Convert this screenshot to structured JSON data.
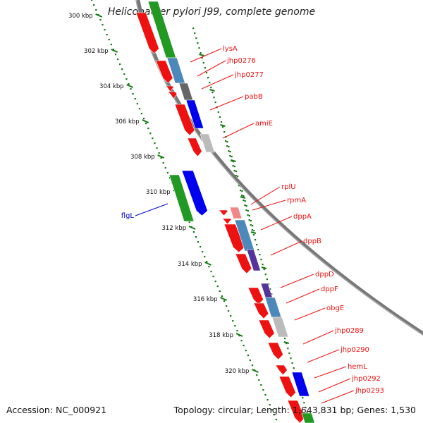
{
  "title": "Helicobacter pylori J99, complete genome",
  "footer": {
    "accession": "Accession: NC_000921",
    "topology": "Topology: circular; Length: 1,643,831 bp; Genes: 1,530"
  },
  "colors": {
    "gene_red": "#ee1111",
    "gene_green": "#229922",
    "gene_blue": "#0000ee",
    "steelblue": "#4d88bb",
    "darkgray": "#666666",
    "lightgray": "#bbbbbb",
    "purple": "#553399",
    "pink": "#ee8888",
    "tick": "#117711",
    "label_red": "#ee1111",
    "label_blue": "#0000cc"
  },
  "scale": {
    "unit": "kbp",
    "ticks": [
      "300 kbp",
      "302 kbp",
      "304 kbp",
      "306 kbp",
      "308 kbp",
      "310 kbp",
      "312 kbp",
      "314 kbp",
      "316 kbp",
      "318 kbp",
      "320 kbp"
    ]
  },
  "gene_labels": [
    {
      "name": "lysA",
      "strand": "minus"
    },
    {
      "name": "jhp0276",
      "strand": "minus"
    },
    {
      "name": "jhp0277",
      "strand": "minus"
    },
    {
      "name": "pabB",
      "strand": "minus"
    },
    {
      "name": "amiE",
      "strand": "minus"
    },
    {
      "name": "rplU",
      "strand": "minus"
    },
    {
      "name": "rpmA",
      "strand": "minus"
    },
    {
      "name": "dppA",
      "strand": "minus"
    },
    {
      "name": "dppB",
      "strand": "minus"
    },
    {
      "name": "dppD",
      "strand": "minus"
    },
    {
      "name": "dppF",
      "strand": "minus"
    },
    {
      "name": "obgE",
      "strand": "minus"
    },
    {
      "name": "jhp0289",
      "strand": "minus"
    },
    {
      "name": "jhp0290",
      "strand": "minus"
    },
    {
      "name": "hemL",
      "strand": "minus"
    },
    {
      "name": "jhp0292",
      "strand": "minus"
    },
    {
      "name": "jhp0293",
      "strand": "minus"
    },
    {
      "name": "flgL",
      "strand": "plus"
    }
  ]
}
